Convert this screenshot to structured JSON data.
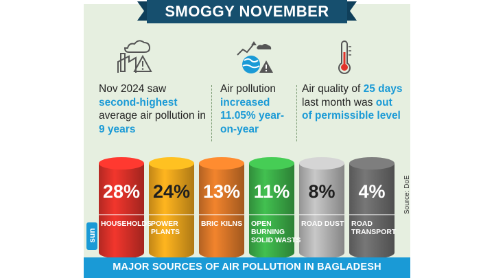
{
  "title": "SMOGGY NOVEMBER",
  "stats": [
    {
      "icon": "factory-warning-icon",
      "parts": [
        "Nov 2024 saw ",
        "second-highest",
        " average air pollution in ",
        "9 years"
      ]
    },
    {
      "icon": "pollution-trend-icon",
      "parts": [
        "Air pollution ",
        "increased 11.05% year-on-year"
      ]
    },
    {
      "icon": "thermometer-icon",
      "parts": [
        "Air quality of ",
        "25 days",
        " last month was ",
        "out of permissible level"
      ]
    }
  ],
  "chart_data": {
    "type": "bar",
    "title": "MAJOR SOURCES OF AIR POLLUTION IN BAGLADESH",
    "categories": [
      "HOUSEHOLDS",
      "POWER PLANTS",
      "BRIC KILNS",
      "OPEN BURNING SOLID WASTS",
      "ROAD DUST",
      "ROAD TRANSPORT"
    ],
    "values": [
      28,
      24,
      13,
      11,
      8,
      4
    ],
    "value_labels": [
      "28%",
      "24%",
      "13%",
      "11%",
      "8%",
      "4%"
    ],
    "label_lines": [
      [
        "HOUSEHOLDS"
      ],
      [
        "POWER",
        "PLANTS"
      ],
      [
        "BRIC KILNS"
      ],
      [
        "OPEN",
        "BURNING",
        "SOLID WASTS"
      ],
      [
        "ROAD DUST"
      ],
      [
        "ROAD",
        "TRANSPORT"
      ]
    ],
    "colors": [
      "#e0322a",
      "#f2a81d",
      "#e07a2a",
      "#3db24a",
      "#b9b9b9",
      "#6e6e6e"
    ],
    "pct_colors": [
      "#ffffff",
      "#1f1f1f",
      "#ffffff",
      "#ffffff",
      "#1f1f1f",
      "#ffffff"
    ]
  },
  "source": "Source: DoE",
  "brand": "sun"
}
